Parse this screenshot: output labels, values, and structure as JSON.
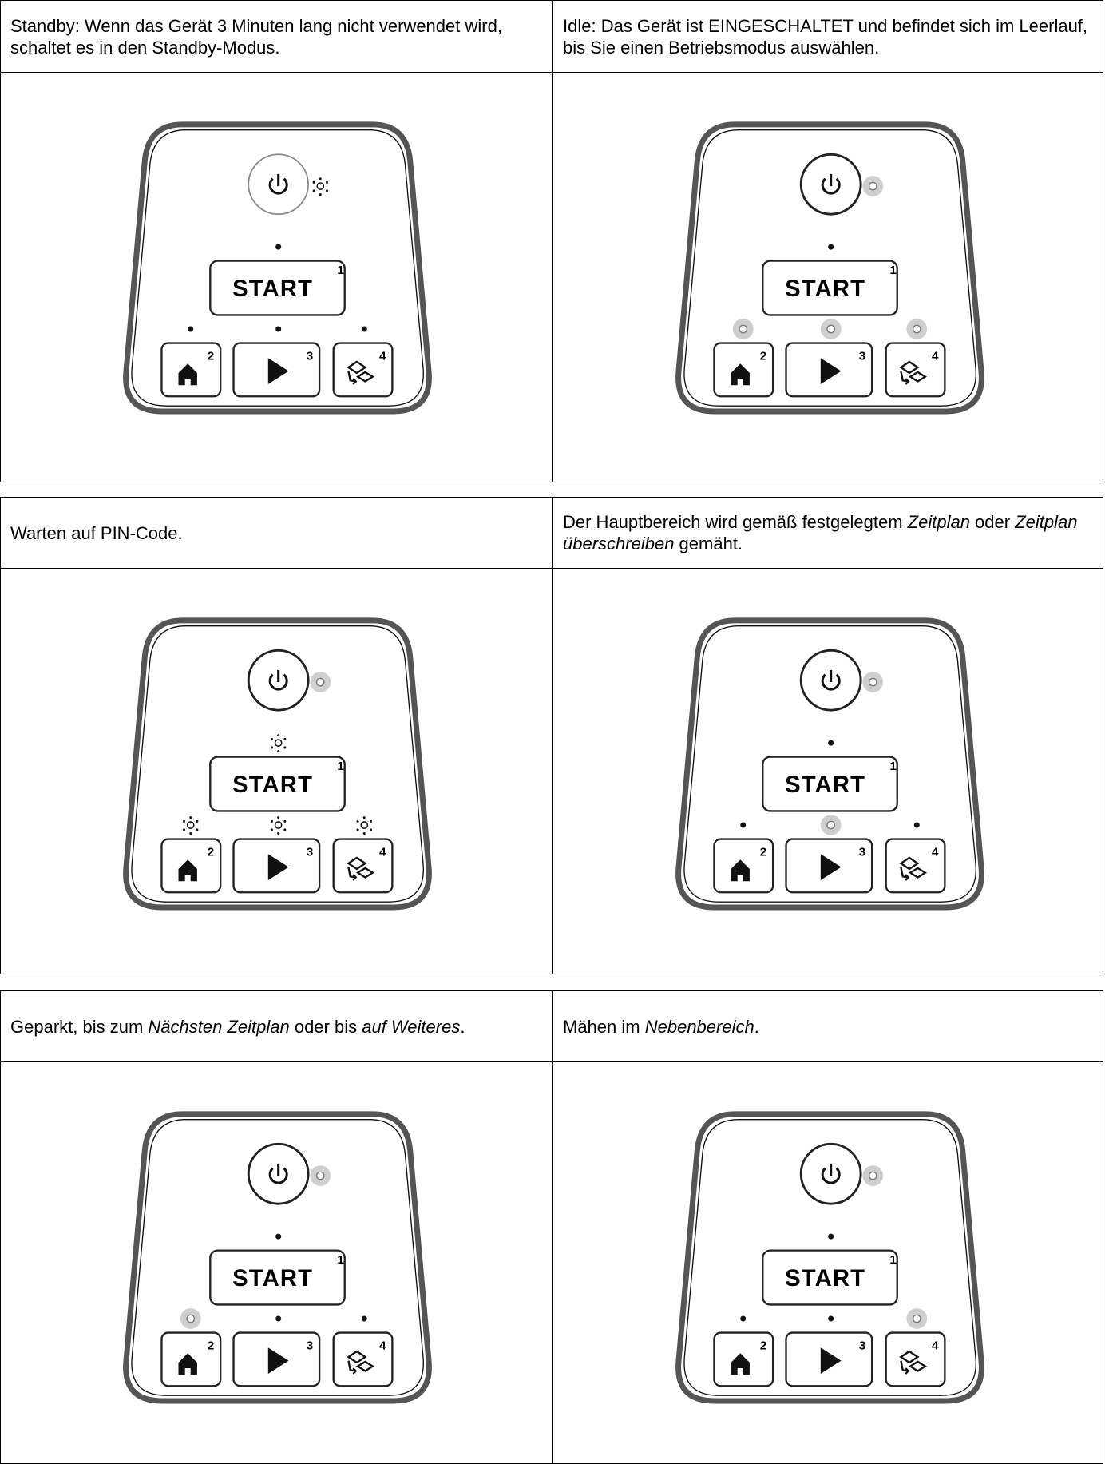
{
  "blocks": [
    {
      "cells": [
        {
          "caption": [
            "Standby: Wenn das Gerät 3 Minuten lang nicht verwendet wird, schaltet es in den Standby-Modus."
          ]
        },
        {
          "caption": [
            "Idle: Das Gerät ist EINGESCHALTET und befindet sich im Leerlauf, bis Sie einen Betriebsmodus auswählen."
          ]
        }
      ]
    },
    {
      "cells": [
        {
          "caption": [
            "Warten auf PIN-Code."
          ]
        },
        {
          "caption": [
            "Der Hauptbereich wird gemäß festgelegtem ",
            "Zeitplan",
            " oder ",
            "Zeitplan überschreiben",
            " gemäht."
          ]
        }
      ]
    },
    {
      "cells": [
        {
          "caption": [
            "Geparkt, bis zum ",
            "Nächsten Zeitplan",
            " oder bis ",
            "auf Weiteres",
            "."
          ]
        },
        {
          "caption": [
            "Mähen im ",
            "Nebenbereich",
            "."
          ]
        }
      ]
    }
  ],
  "panel": {
    "start": "START",
    "keys": [
      "1",
      "2",
      "3",
      "4"
    ]
  }
}
